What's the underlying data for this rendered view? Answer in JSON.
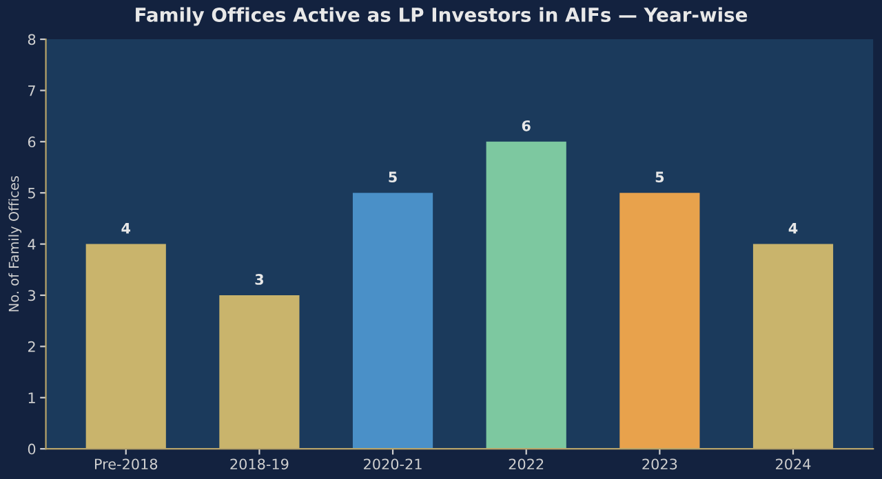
{
  "chart_data": {
    "type": "bar",
    "title": "Family Offices Active as LP Investors in AIFs — Year-wise",
    "ylabel": "No. of Family Offices",
    "categories": [
      "Pre-2018",
      "2018-19",
      "2020-21",
      "2022",
      "2023",
      "2024"
    ],
    "values": [
      4,
      3,
      5,
      6,
      5,
      4
    ],
    "colors": [
      "#c9b46c",
      "#c9b46c",
      "#4a90c8",
      "#7dc8a0",
      "#e8a24c",
      "#c9b46c"
    ],
    "ylim": [
      0,
      8
    ],
    "yticks": [
      0,
      1,
      2,
      3,
      4,
      5,
      6,
      7,
      8
    ],
    "grid": false,
    "legend": false,
    "data_labels": true
  }
}
